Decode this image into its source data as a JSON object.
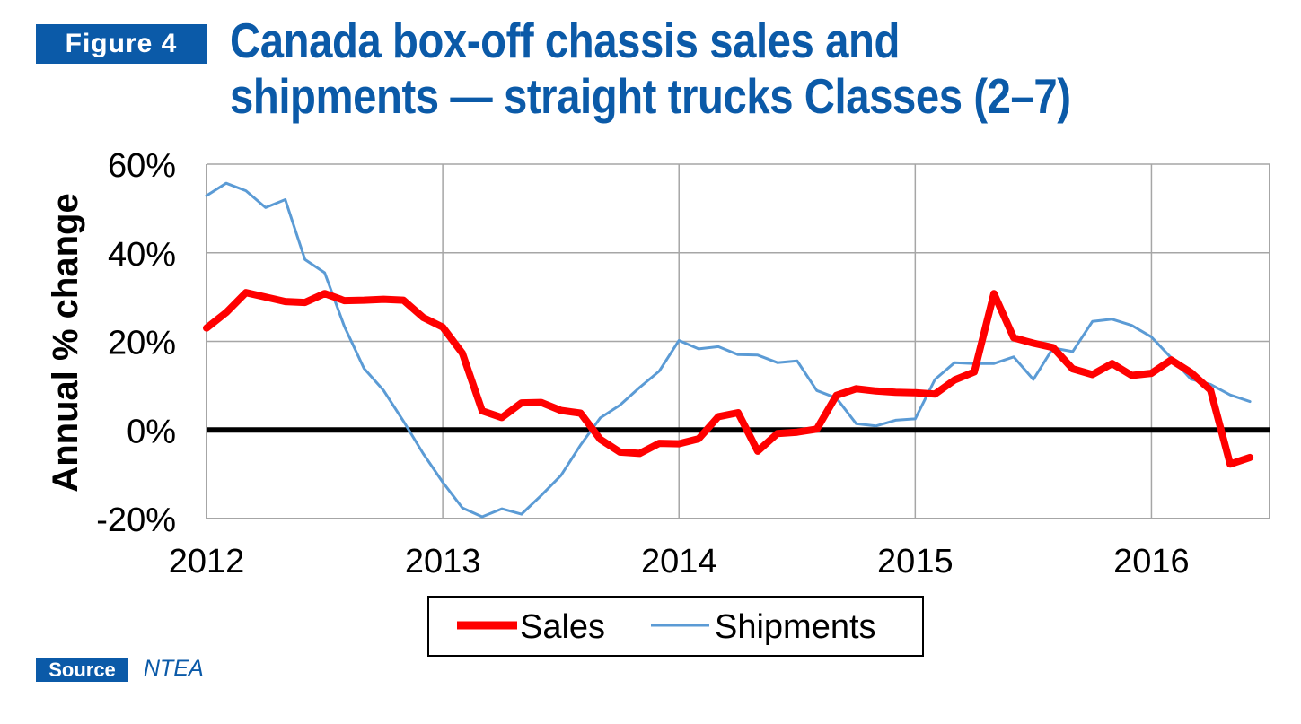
{
  "figure": {
    "label": "Figure 4",
    "title_line1": "Canada box-off chassis sales and",
    "title_line2": "shipments — straight trucks Classes (2–7)"
  },
  "source": {
    "label": "Source",
    "value": "NTEA"
  },
  "colors": {
    "brand": "#0b5aa8",
    "sales": "#ff0000",
    "shipments": "#5b9bd5",
    "zero_line": "#000000",
    "grid": "#a6a6a6"
  },
  "chart_data": {
    "type": "line",
    "title": "Canada box-off chassis sales and shipments — straight trucks Classes (2–7)",
    "ylabel": "Annual % change",
    "xlabel": "",
    "ylim": [
      -20,
      60
    ],
    "xlim": [
      2012.0,
      2016.5
    ],
    "yticks": [
      "-20%",
      "0%",
      "20%",
      "40%",
      "60%"
    ],
    "ytick_values": [
      -20,
      0,
      20,
      40,
      60
    ],
    "xticks": [
      "2012",
      "2013",
      "2014",
      "2015",
      "2016"
    ],
    "xtick_values": [
      2012,
      2013,
      2014,
      2015,
      2016
    ],
    "grid": true,
    "legend_position": "bottom-center",
    "frequency": "monthly",
    "x_start": "2012-01",
    "series": [
      {
        "name": "Sales",
        "values": [
          23,
          26.5,
          31,
          30,
          29,
          28.8,
          30.8,
          29.2,
          29.3,
          29.5,
          29.3,
          25.4,
          23.2,
          17.3,
          4.3,
          2.8,
          6.1,
          6.2,
          4.4,
          3.8,
          -2.1,
          -5,
          -5.3,
          -3,
          -3.1,
          -2,
          3,
          3.9,
          -4.8,
          -0.8,
          -0.5,
          0.2,
          7.8,
          9.3,
          8.8,
          8.5,
          8.4,
          8.1,
          11.3,
          13.1,
          30.8,
          20.8,
          19.6,
          18.6,
          13.8,
          12.5,
          15,
          12.3,
          12.8,
          15.8,
          13,
          9,
          -7.7,
          -6.2
        ]
      },
      {
        "name": "Shipments",
        "values": [
          52.9,
          55.7,
          54,
          50.2,
          52,
          38.5,
          35.5,
          23.4,
          13.9,
          8.9,
          2,
          -5.3,
          -11.8,
          -17.6,
          -19.6,
          -17.8,
          -19,
          -14.8,
          -10.3,
          -3.4,
          2.7,
          5.6,
          9.6,
          13.3,
          20.2,
          18.3,
          18.8,
          17,
          16.9,
          15.2,
          15.6,
          8.9,
          7.2,
          1.4,
          0.9,
          2.2,
          2.5,
          11.4,
          15.2,
          15,
          15,
          16.5,
          11.4,
          18.5,
          17.7,
          24.5,
          25,
          23.6,
          21,
          16.3,
          11.5,
          10.3,
          7.9,
          6.4
        ]
      }
    ]
  }
}
